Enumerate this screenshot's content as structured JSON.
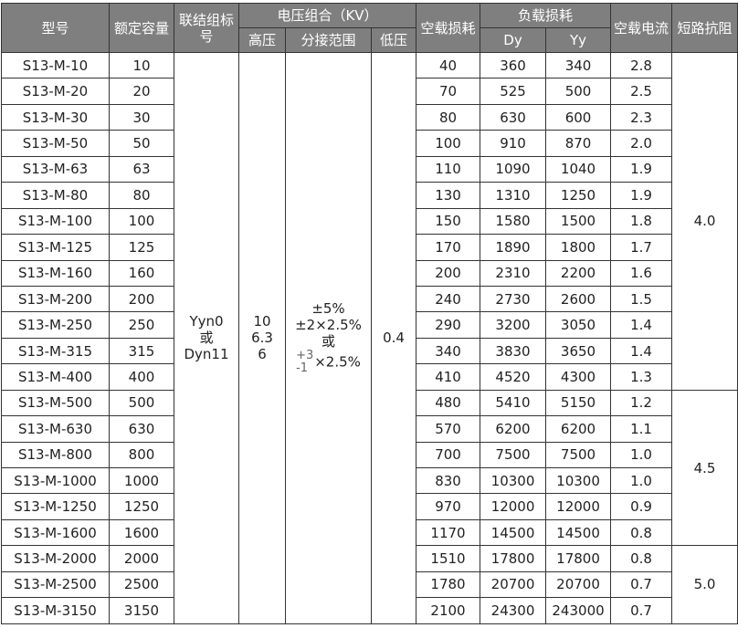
{
  "headers": {
    "model": "型号",
    "capacity": "额定容量",
    "connection": "联结组标号",
    "voltage": "电压组合（KV）",
    "hv": "高压",
    "tap": "分接范围",
    "lv": "低压",
    "noload_loss": "空载损耗",
    "load_loss": "负载损耗",
    "dy": "Dy",
    "yy": "Yy",
    "noload_current": "空载电流",
    "impedance": "短路抗阻"
  },
  "merged": {
    "connection": [
      "Yyn0",
      "或",
      "Dyn11"
    ],
    "hv": [
      "10",
      "6.3",
      "6"
    ],
    "tap": [
      "±5%",
      "±2×2.5%",
      "或",
      "+3",
      "-1",
      "×2.5%"
    ],
    "lv": "0.4",
    "impedance": [
      "4.0",
      "4.5",
      "5.0"
    ]
  },
  "rows": [
    [
      "S13-M-10",
      "10",
      "40",
      "360",
      "340",
      "2.8"
    ],
    [
      "S13-M-20",
      "20",
      "70",
      "525",
      "500",
      "2.5"
    ],
    [
      "S13-M-30",
      "30",
      "80",
      "630",
      "600",
      "2.3"
    ],
    [
      "S13-M-50",
      "50",
      "100",
      "910",
      "870",
      "2.0"
    ],
    [
      "S13-M-63",
      "63",
      "110",
      "1090",
      "1040",
      "1.9"
    ],
    [
      "S13-M-80",
      "80",
      "130",
      "1310",
      "1250",
      "1.9"
    ],
    [
      "S13-M-100",
      "100",
      "150",
      "1580",
      "1500",
      "1.8"
    ],
    [
      "S13-M-125",
      "125",
      "170",
      "1890",
      "1800",
      "1.7"
    ],
    [
      "S13-M-160",
      "160",
      "200",
      "2310",
      "2200",
      "1.6"
    ],
    [
      "S13-M-200",
      "200",
      "240",
      "2730",
      "2600",
      "1.5"
    ],
    [
      "S13-M-250",
      "250",
      "290",
      "3200",
      "3050",
      "1.4"
    ],
    [
      "S13-M-315",
      "315",
      "340",
      "3830",
      "3650",
      "1.4"
    ],
    [
      "S13-M-400",
      "400",
      "410",
      "4520",
      "4300",
      "1.3"
    ],
    [
      "S13-M-500",
      "500",
      "480",
      "5410",
      "5150",
      "1.2"
    ],
    [
      "S13-M-630",
      "630",
      "570",
      "6200",
      "6200",
      "1.1"
    ],
    [
      "S13-M-800",
      "800",
      "700",
      "7500",
      "7500",
      "1.0"
    ],
    [
      "S13-M-1000",
      "1000",
      "830",
      "10300",
      "10300",
      "1.0"
    ],
    [
      "S13-M-1250",
      "1250",
      "970",
      "12000",
      "12000",
      "0.9"
    ],
    [
      "S13-M-1600",
      "1600",
      "1170",
      "14500",
      "14500",
      "0.8"
    ],
    [
      "S13-M-2000",
      "2000",
      "1510",
      "17800",
      "17800",
      "0.8"
    ],
    [
      "S13-M-2500",
      "2500",
      "1780",
      "20700",
      "20700",
      "0.7"
    ],
    [
      "S13-M-3150",
      "3150",
      "2100",
      "24300",
      "243000",
      "0.7"
    ]
  ],
  "colors": {
    "header_bg": "#7f7f7f",
    "header_text": "#ffffff",
    "border": "#333333"
  }
}
